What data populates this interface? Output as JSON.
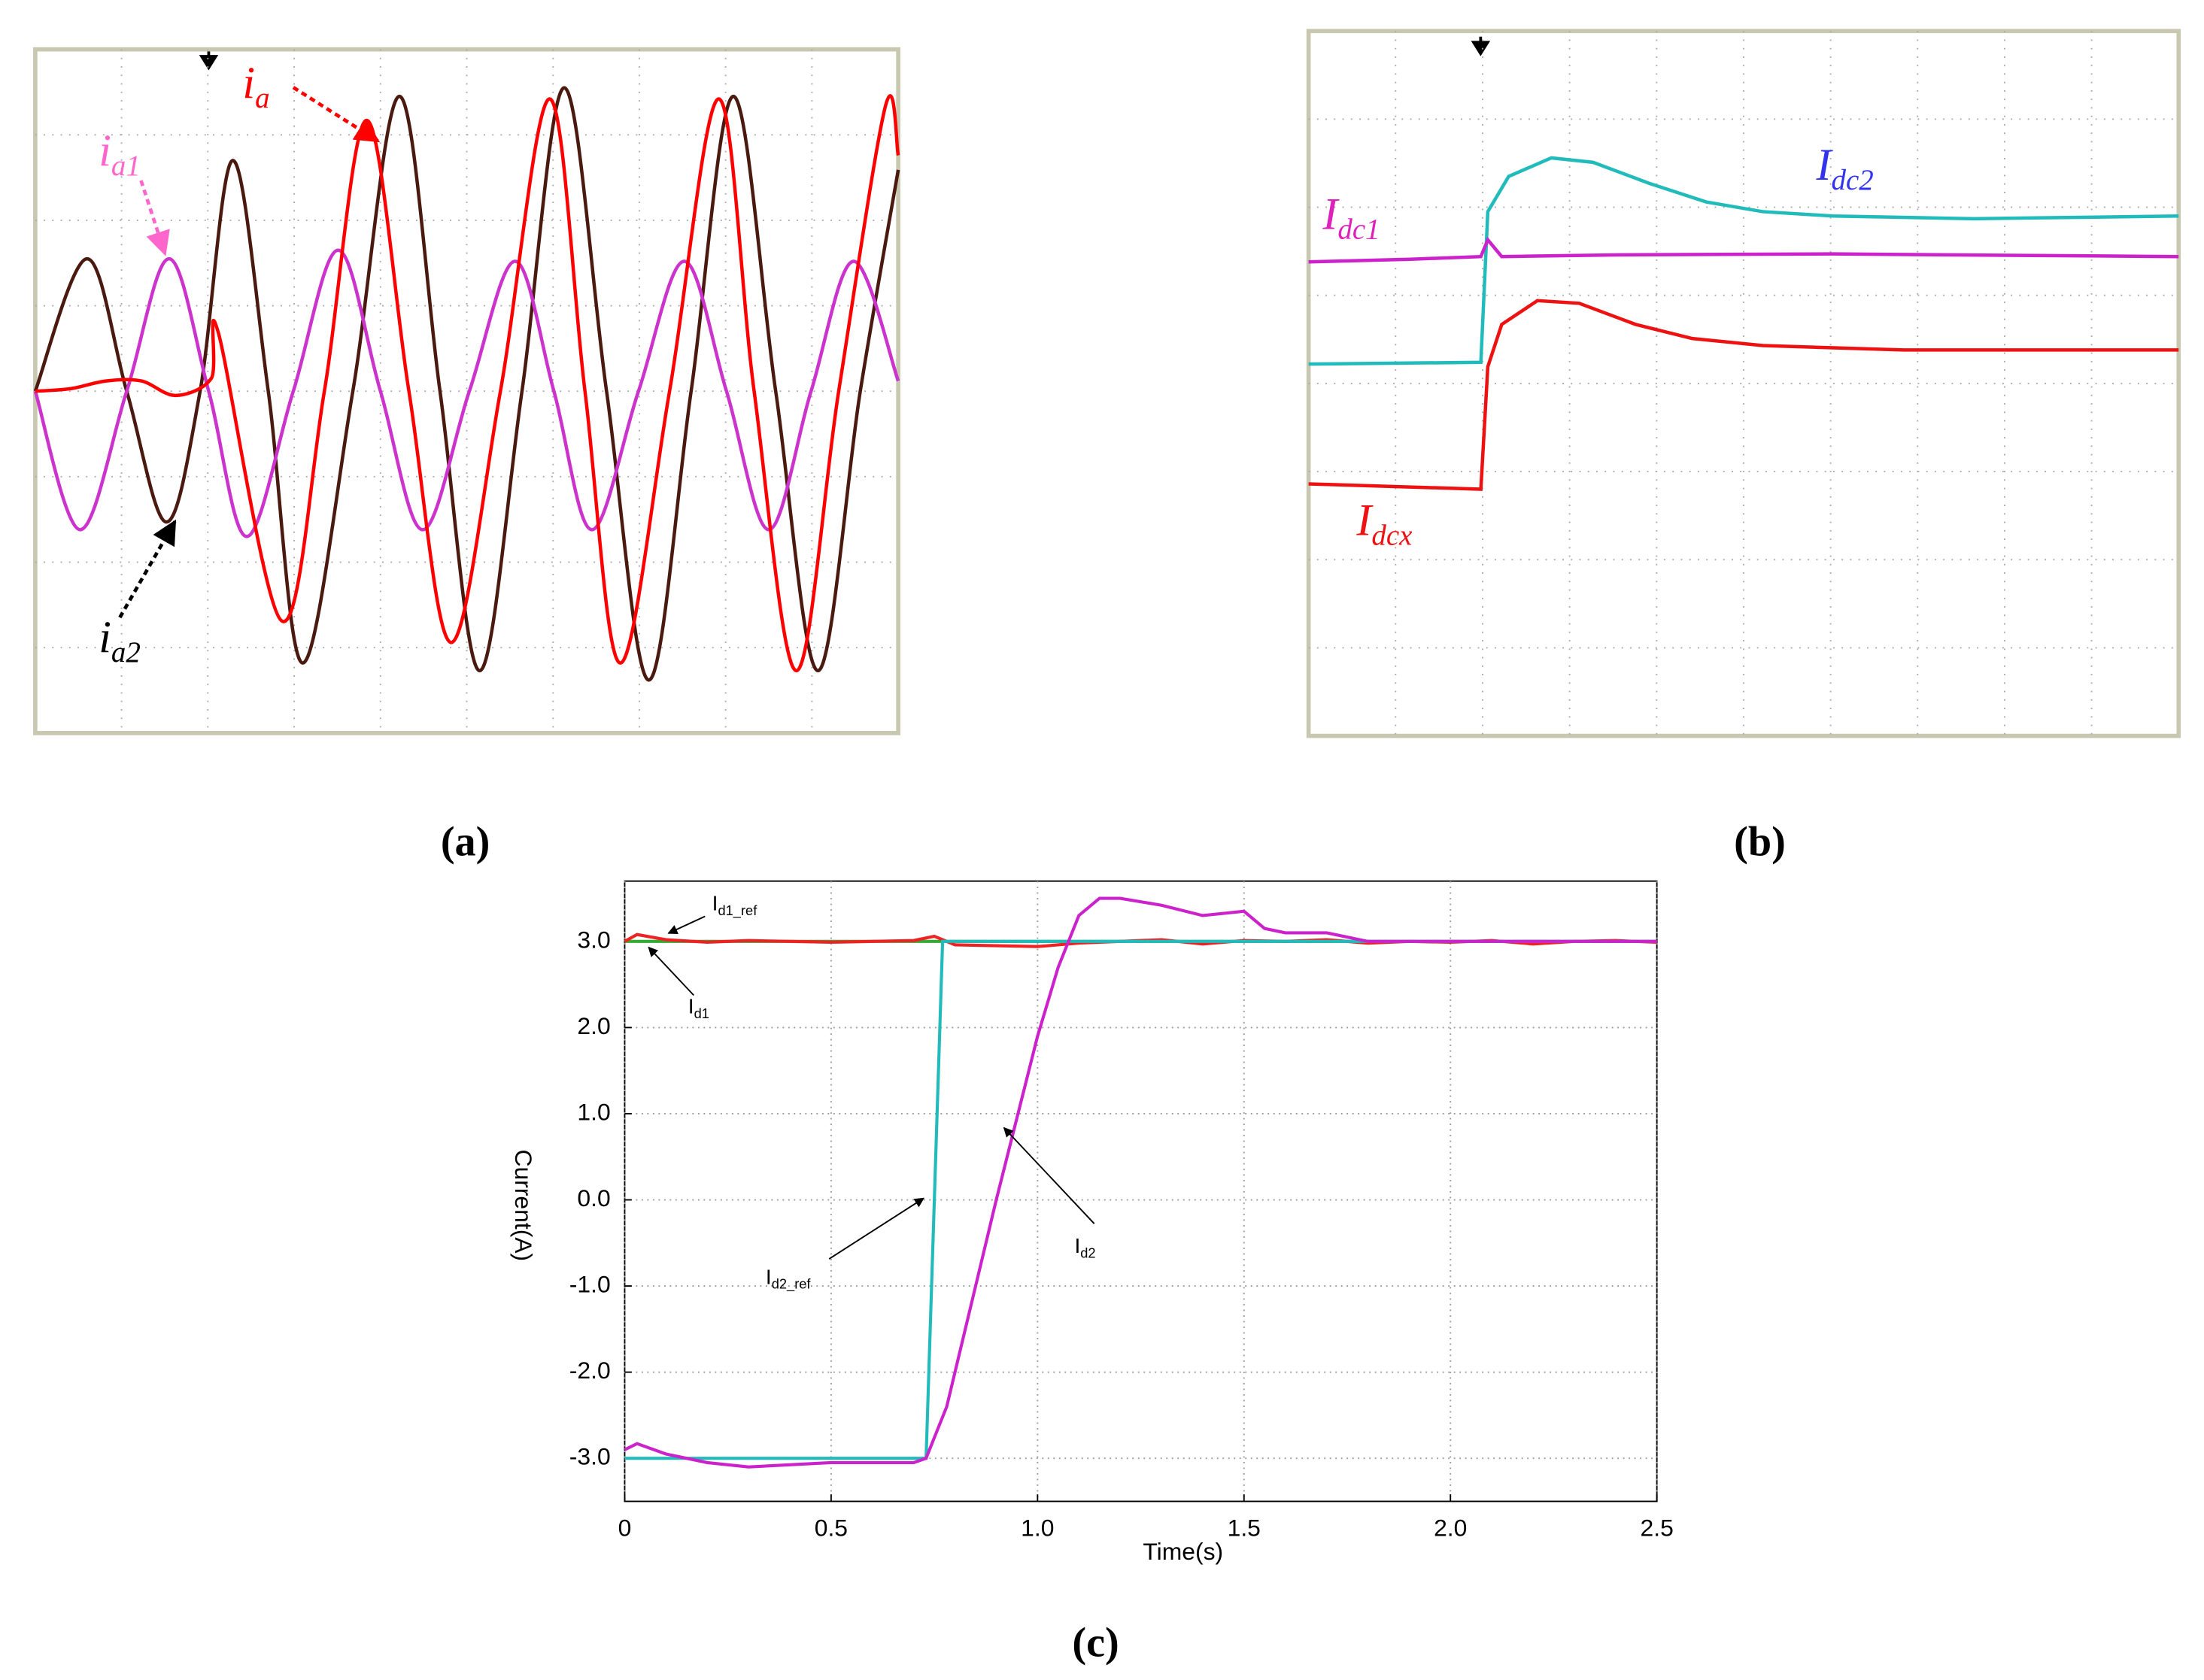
{
  "chart_data": [
    {
      "type": "line",
      "caption": "(a)",
      "xlim": [
        0,
        10
      ],
      "ylim": [
        -4,
        4
      ],
      "series": [
        {
          "color": "#4a1a10",
          "x": [
            0,
            0.6,
            1.06,
            1.52,
            1.91,
            2.29,
            2.7,
            3.1,
            3.68,
            4.22,
            4.69,
            5.15,
            5.64,
            6.13,
            6.62,
            7.11,
            7.6,
            8.09,
            8.58,
            9.07,
            9.56,
            10
          ],
          "values": [
            0,
            1.55,
            0,
            -1.53,
            0,
            2.7,
            0,
            -3.18,
            0,
            3.45,
            0,
            -3.27,
            0,
            3.55,
            0,
            -3.38,
            0,
            3.45,
            0,
            -3.27,
            0,
            2.59
          ]
        },
        {
          "color": "#cc33cc",
          "x": [
            0,
            0.52,
            1.06,
            1.55,
            2.01,
            2.45,
            2.99,
            3.51,
            4.0,
            4.49,
            5.03,
            5.56,
            6.01,
            6.45,
            6.99,
            7.52,
            8.01,
            8.5,
            8.99,
            9.48,
            10
          ],
          "values": [
            0,
            -1.62,
            0,
            1.55,
            0,
            -1.7,
            0,
            1.65,
            0,
            -1.62,
            0,
            1.52,
            0,
            -1.62,
            0,
            1.52,
            0,
            -1.62,
            0,
            1.52,
            0.12
          ]
        },
        {
          "color": "#ff0000",
          "x": [
            0,
            0.41,
            0.82,
            1.23,
            1.63,
            2.04,
            2.12,
            2.86,
            3.35,
            3.84,
            4.33,
            4.82,
            5.39,
            5.96,
            6.37,
            6.78,
            7.35,
            7.92,
            8.33,
            8.82,
            9.31,
            9.85,
            10
          ],
          "values": [
            0,
            0.03,
            0.12,
            0.12,
            -0.05,
            0.15,
            0.69,
            -2.69,
            0,
            3.17,
            0,
            -2.94,
            0,
            3.42,
            0,
            -3.18,
            0,
            3.42,
            0,
            -3.27,
            0,
            3.33,
            2.76
          ]
        }
      ],
      "annotations": [
        {
          "text": "i",
          "sub": "a",
          "color": "#ff0000"
        },
        {
          "text": "i",
          "sub": "a1",
          "color": "#ff66cc"
        },
        {
          "text": "i",
          "sub": "a2",
          "color": "#000000"
        }
      ]
    },
    {
      "type": "line",
      "caption": "(b)",
      "xlim": [
        0,
        10
      ],
      "ylim": [
        -4,
        4
      ],
      "series": [
        {
          "color": "#22bbbb",
          "x": [
            0,
            1.98,
            2.06,
            2.3,
            2.79,
            3.27,
            3.92,
            4.57,
            5.22,
            6.03,
            7.65,
            10
          ],
          "values": [
            0.22,
            0.24,
            1.95,
            2.35,
            2.56,
            2.51,
            2.27,
            2.06,
            1.95,
            1.9,
            1.87,
            1.9
          ]
        },
        {
          "color": "#cc22cc",
          "x": [
            0,
            1.17,
            1.98,
            2.06,
            2.22,
            3.6,
            6.03,
            10
          ],
          "values": [
            1.38,
            1.41,
            1.44,
            1.63,
            1.44,
            1.46,
            1.47,
            1.44
          ]
        },
        {
          "color": "#ee1111",
          "x": [
            0,
            1.98,
            2.06,
            2.22,
            2.63,
            3.11,
            3.76,
            4.41,
            5.22,
            6.84,
            10
          ],
          "values": [
            -1.14,
            -1.2,
            0.19,
            0.67,
            0.94,
            0.91,
            0.67,
            0.51,
            0.43,
            0.38,
            0.38
          ]
        }
      ],
      "annotations": [
        {
          "text": "I",
          "sub": "dc1",
          "color": "#dd22bb"
        },
        {
          "text": "I",
          "sub": "dc2",
          "color": "#3333ee"
        },
        {
          "text": "I",
          "sub": "dcx",
          "color": "#ee1111"
        }
      ]
    },
    {
      "type": "line",
      "caption": "(c)",
      "xlabel": "Time(s)",
      "ylabel": "Current(A)",
      "xlim": [
        0,
        2.5
      ],
      "ylim": [
        -3.5,
        3.7
      ],
      "grid": true,
      "xticks": [
        0,
        0.5,
        {
          "value": 1,
          "label": "1.0"
        },
        1.5,
        {
          "value": 2,
          "label": "2.0"
        },
        2.5
      ],
      "yticks": [
        {
          "value": 3,
          "label": "3.0"
        },
        {
          "value": 2,
          "label": "2.0"
        },
        {
          "value": 1,
          "label": "1.0"
        },
        {
          "value": 0,
          "label": "0.0"
        },
        {
          "value": -1,
          "label": "-1.0"
        },
        {
          "value": -2,
          "label": "-2.0"
        },
        {
          "value": -3,
          "label": "-3.0"
        }
      ],
      "series": [
        {
          "color": "#33aa33",
          "x": [
            0,
            2.5
          ],
          "values": [
            3,
            3
          ]
        },
        {
          "color": "#ee2222",
          "x": [
            0,
            0.03,
            0.1,
            0.2,
            0.3,
            0.4,
            0.5,
            0.6,
            0.7,
            0.75,
            0.8,
            0.9,
            1.0,
            1.1,
            1.2,
            1.3,
            1.4,
            1.5,
            1.6,
            1.7,
            1.8,
            1.9,
            2.0,
            2.1,
            2.2,
            2.3,
            2.4,
            2.5
          ],
          "values": [
            3.0,
            3.08,
            3.02,
            2.99,
            3.01,
            3.0,
            2.99,
            3.0,
            3.01,
            3.06,
            2.96,
            2.95,
            2.94,
            2.98,
            3.0,
            3.02,
            2.97,
            3.01,
            3.0,
            3.02,
            2.98,
            3.0,
            2.99,
            3.01,
            2.97,
            3.0,
            3.01,
            2.99
          ]
        },
        {
          "color": "#22bbbb",
          "x": [
            0,
            0.73,
            0.75,
            0.77,
            2.5
          ],
          "values": [
            -3,
            -3,
            0,
            3,
            3
          ]
        },
        {
          "color": "#cc22cc",
          "x": [
            0,
            0.03,
            0.1,
            0.2,
            0.3,
            0.5,
            0.7,
            0.73,
            0.78,
            0.85,
            0.9,
            1.0,
            1.05,
            1.1,
            1.15,
            1.2,
            1.3,
            1.4,
            1.5,
            1.55,
            1.6,
            1.7,
            1.8,
            2.0,
            2.5
          ],
          "values": [
            -2.9,
            -2.83,
            -2.95,
            -3.05,
            -3.1,
            -3.05,
            -3.05,
            -3.0,
            -2.4,
            -1.0,
            0,
            1.9,
            2.7,
            3.3,
            3.5,
            3.5,
            3.42,
            3.3,
            3.35,
            3.15,
            3.1,
            3.1,
            3.0,
            3.0,
            3.0
          ]
        }
      ],
      "annotations": [
        {
          "text": "I",
          "sub": "d1_ref",
          "color": "#000000"
        },
        {
          "text": "I",
          "sub": "d1",
          "color": "#000000"
        },
        {
          "text": "I",
          "sub": "d2_ref",
          "color": "#000000"
        },
        {
          "text": "I",
          "sub": "d2",
          "color": "#000000"
        }
      ]
    }
  ]
}
